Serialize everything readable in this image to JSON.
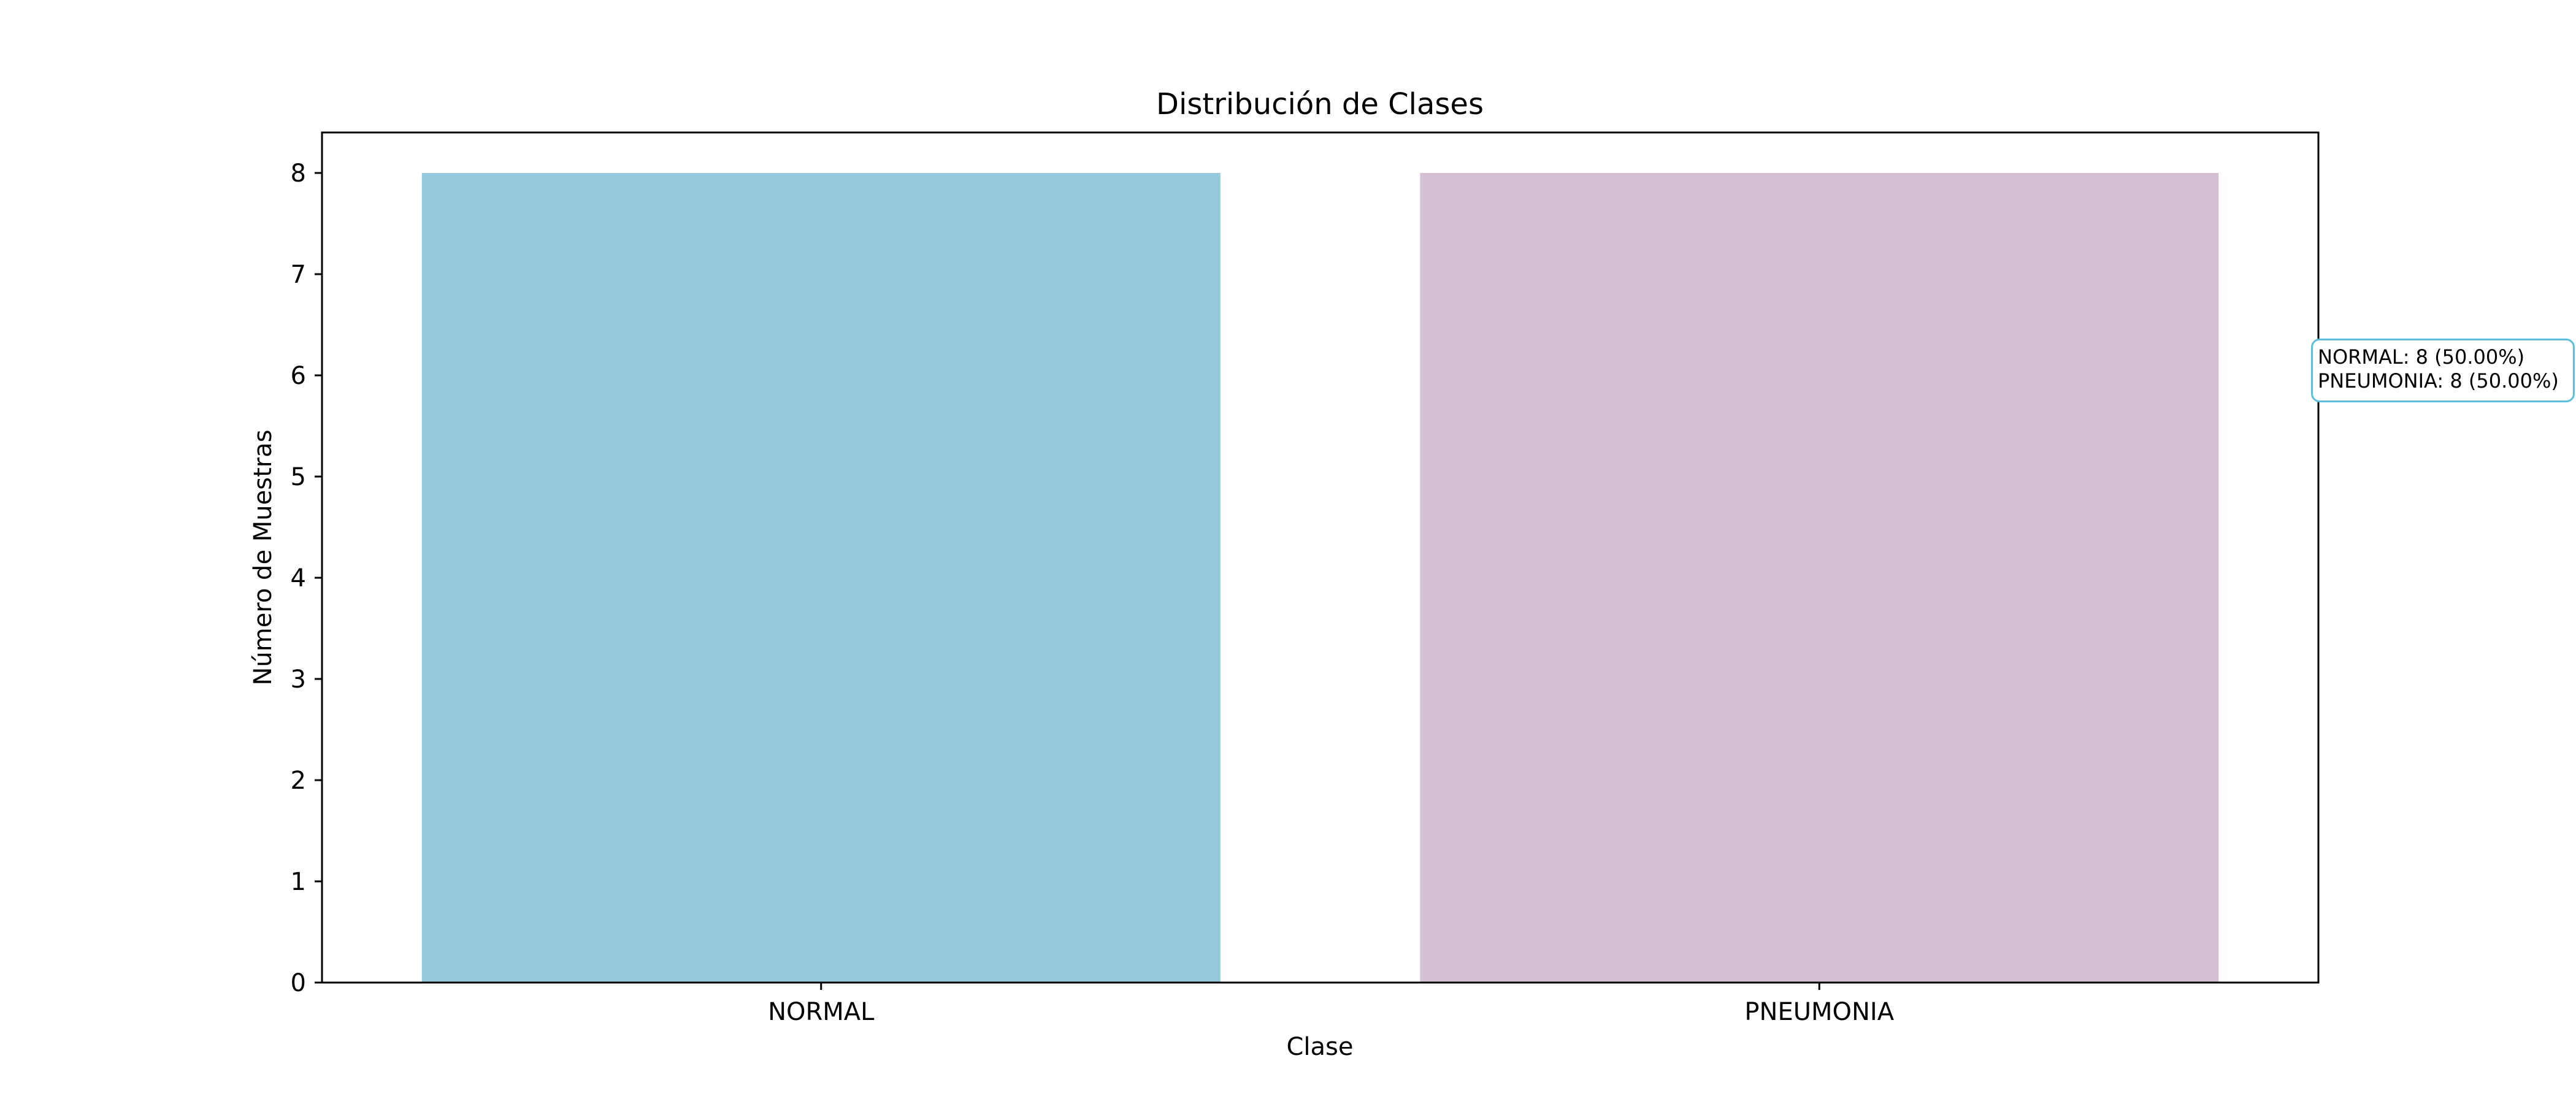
{
  "chart_data": {
    "type": "bar",
    "title": "Distribución de Clases",
    "xlabel": "Clase",
    "ylabel": "Número de Muestras",
    "categories": [
      "NORMAL",
      "PNEUMONIA"
    ],
    "values": [
      8,
      8
    ],
    "colors": [
      "#96c8dc",
      "#d5c1d5"
    ],
    "ylim": [
      0,
      8.4
    ],
    "yticks": [
      0,
      1,
      2,
      3,
      4,
      5,
      6,
      7,
      8
    ],
    "grid": false,
    "annotation": {
      "lines": [
        "NORMAL: 8 (50.00%)",
        "PNEUMONIA: 8 (50.00%)"
      ],
      "border_color": "#5bc0de"
    }
  }
}
